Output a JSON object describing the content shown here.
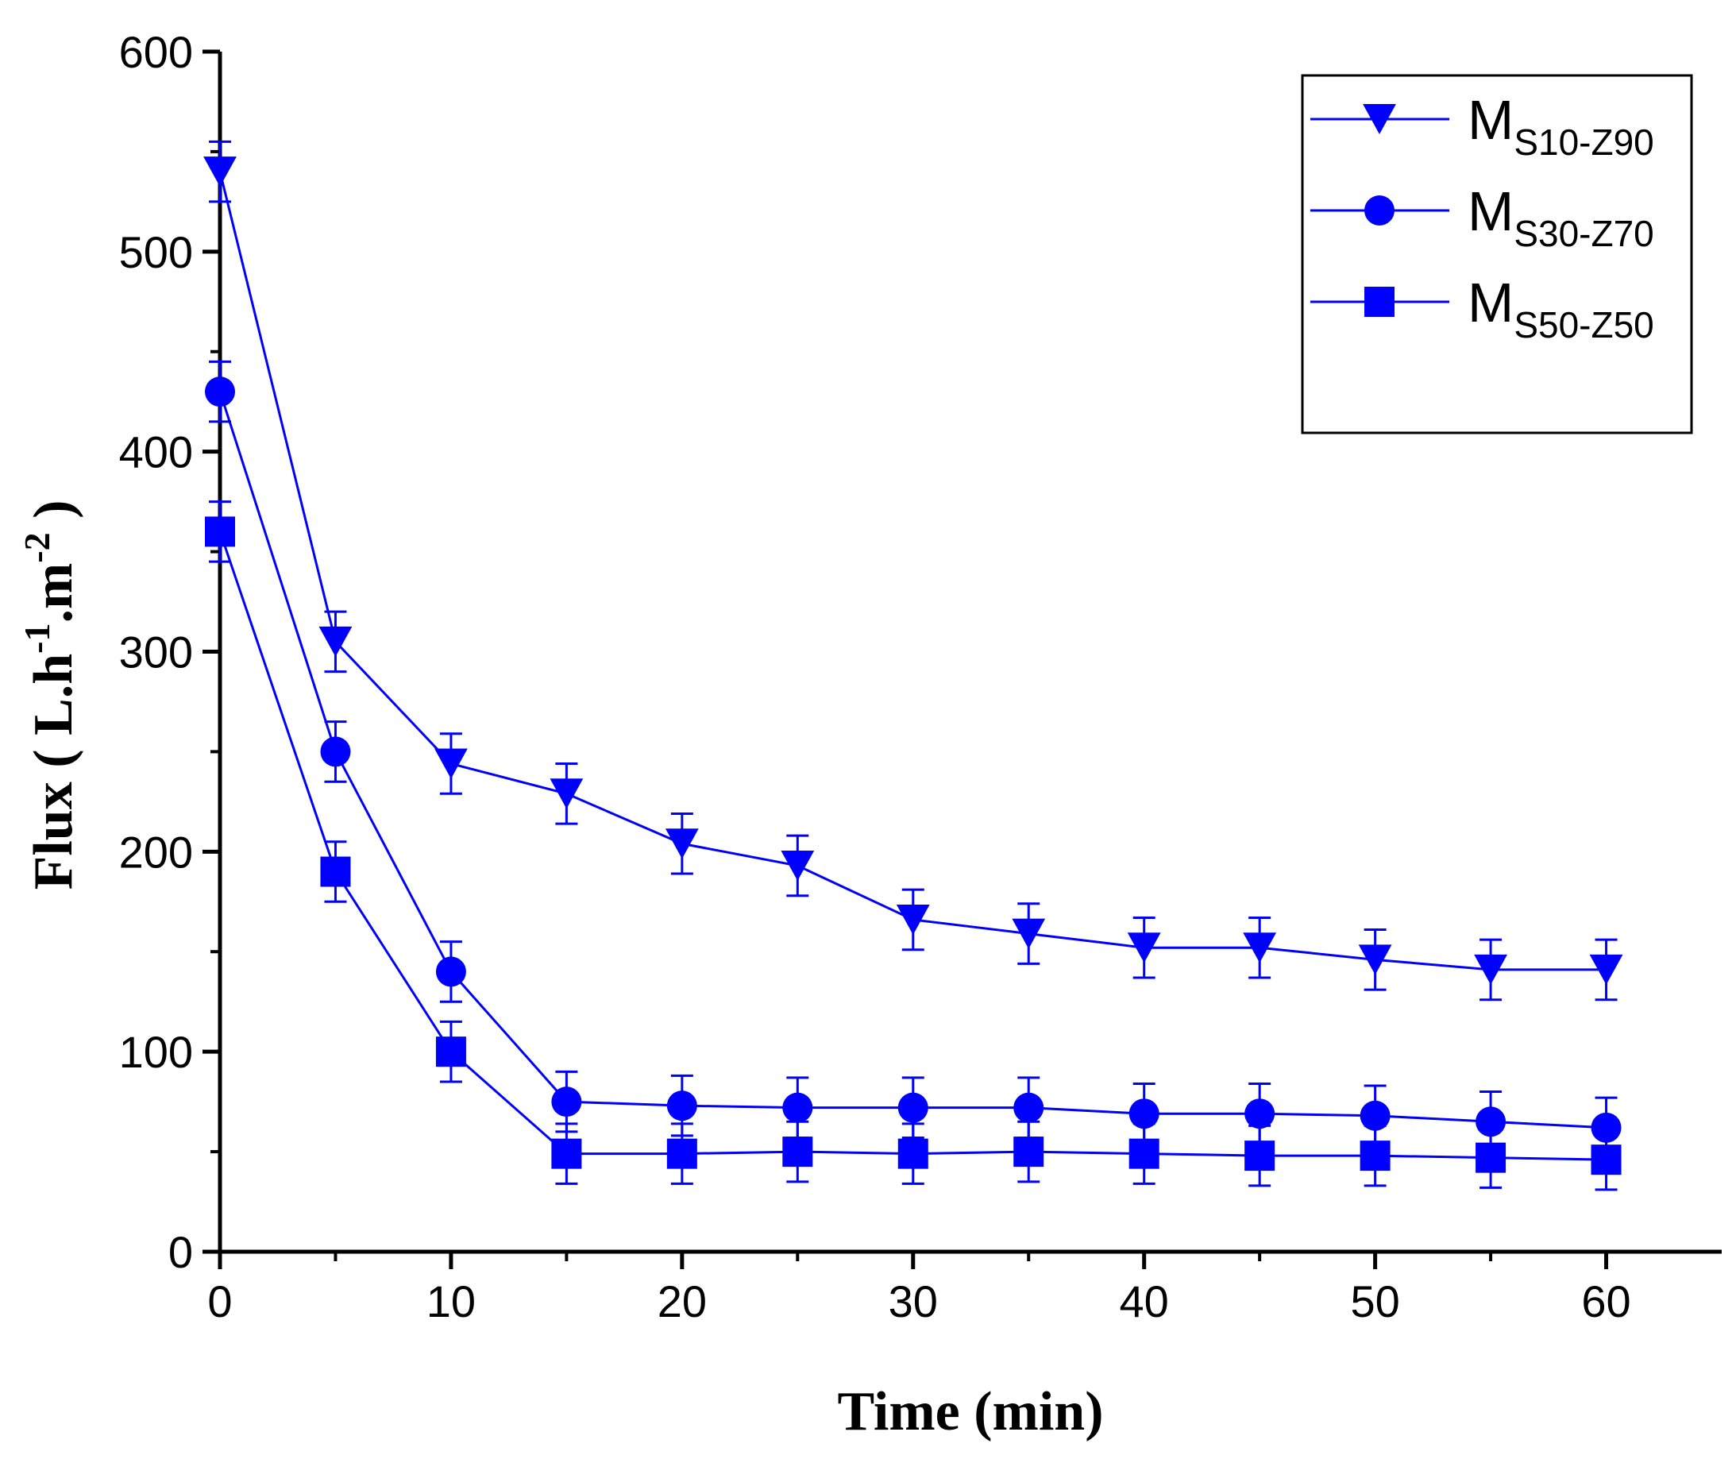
{
  "chart_data": {
    "type": "line",
    "title": "",
    "xlabel": "Time (min)",
    "ylabel": {
      "prefix": "Flux ( L.h",
      "exp1": "-1",
      "mid": ".m",
      "exp2": "-2",
      "suffix": " )"
    },
    "xlim": [
      0,
      65
    ],
    "ylim": [
      0,
      600
    ],
    "x_ticks": [
      0,
      10,
      20,
      30,
      40,
      50,
      60
    ],
    "y_ticks": [
      0,
      100,
      200,
      300,
      400,
      500,
      600
    ],
    "x_minor_ticks": [
      5,
      15,
      25,
      35,
      45,
      55
    ],
    "y_minor_ticks": [
      50,
      150,
      250,
      350,
      450,
      550
    ],
    "x": [
      0,
      5,
      10,
      15,
      20,
      25,
      30,
      35,
      40,
      45,
      50,
      55,
      60
    ],
    "color": "#0000ff",
    "grid": false,
    "legend_position": "top-right",
    "series": [
      {
        "name": "M",
        "subscript": "S10-Z90",
        "marker": "triangle-down",
        "values": [
          540,
          305,
          244,
          229,
          204,
          193,
          166,
          159,
          152,
          152,
          146,
          141,
          141
        ],
        "errors": [
          15,
          15,
          15,
          15,
          15,
          15,
          15,
          15,
          15,
          15,
          15,
          15,
          15
        ]
      },
      {
        "name": "M",
        "subscript": "S30-Z70",
        "marker": "circle",
        "values": [
          430,
          250,
          140,
          75,
          73,
          72,
          72,
          72,
          69,
          69,
          68,
          65,
          62
        ],
        "errors": [
          15,
          15,
          15,
          15,
          15,
          15,
          15,
          15,
          15,
          15,
          15,
          15,
          15
        ]
      },
      {
        "name": "M",
        "subscript": "S50-Z50",
        "marker": "square",
        "values": [
          360,
          190,
          100,
          49,
          49,
          50,
          49,
          50,
          49,
          48,
          48,
          47,
          46
        ],
        "errors": [
          15,
          15,
          15,
          15,
          15,
          15,
          15,
          15,
          15,
          15,
          15,
          15,
          15
        ]
      }
    ]
  }
}
